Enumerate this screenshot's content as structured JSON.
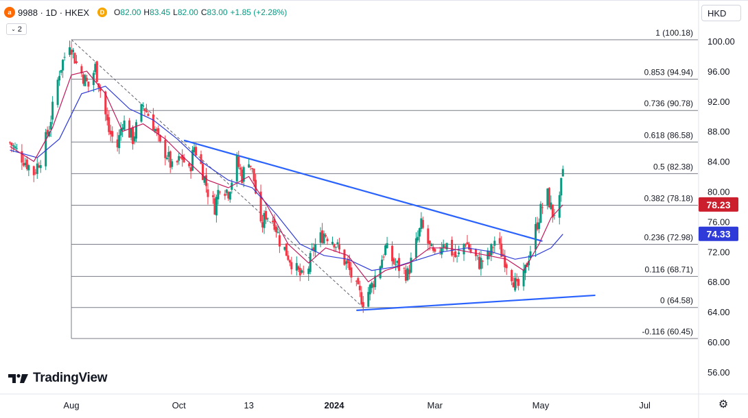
{
  "header": {
    "symbol_badge": "a",
    "title": "9988 · 1D · HKEX",
    "d_badge": "D",
    "ohlc": [
      {
        "k": "O",
        "v": "82.00"
      },
      {
        "k": "H",
        "v": "83.45"
      },
      {
        "k": "L",
        "v": "82.00"
      },
      {
        "k": "C",
        "v": "83.00"
      },
      {
        "k": "",
        "v": "+1.85 (+2.28%)"
      }
    ],
    "indicator_count": "2",
    "currency": "HKD"
  },
  "logo": {
    "text": "TradingView"
  },
  "colors": {
    "up": "#089981",
    "down": "#f23645",
    "ma_fast": "#c2185b",
    "ma_slow": "#2e3bd8",
    "trendline": "#2962ff",
    "fib": "#787b86",
    "label_red": "#cc1f2e",
    "label_blue": "#2e3bd8"
  },
  "chart_data": {
    "type": "candlestick",
    "price_scale": {
      "ticks": [
        56,
        60,
        64,
        68,
        72,
        76,
        80,
        84,
        88,
        92,
        96,
        100
      ],
      "range": [
        52,
        104
      ]
    },
    "price_labels": [
      {
        "value": 78.23,
        "text": "78.23",
        "color": "#cc1f2e"
      },
      {
        "value": 74.33,
        "text": "74.33",
        "color": "#2e3bd8"
      }
    ],
    "time_labels": [
      {
        "text": "Aug",
        "date": "2023-08-01",
        "bold": false
      },
      {
        "text": "Oct",
        "date": "2023-10-03",
        "bold": false
      },
      {
        "text": "13",
        "date": "2023-11-13",
        "bold": false
      },
      {
        "text": "2024",
        "date": "2024-01-02",
        "bold": true
      },
      {
        "text": "Mar",
        "date": "2024-03-01",
        "bold": false
      },
      {
        "text": "May",
        "date": "2024-05-02",
        "bold": false
      },
      {
        "text": "Jul",
        "date": "2024-07-02",
        "bold": false
      }
    ],
    "fib_levels": [
      {
        "ratio": "1",
        "value": 100.18
      },
      {
        "ratio": "0.853",
        "value": 94.94
      },
      {
        "ratio": "0.736",
        "value": 90.78
      },
      {
        "ratio": "0.618",
        "value": 86.58
      },
      {
        "ratio": "0.5",
        "value": 82.38
      },
      {
        "ratio": "0.382",
        "value": 78.18
      },
      {
        "ratio": "0.236",
        "value": 72.98
      },
      {
        "ratio": "0.116",
        "value": 68.71
      },
      {
        "ratio": "0",
        "value": 64.58
      },
      {
        "ratio": "-0.116",
        "value": 60.45
      }
    ],
    "trendlines": [
      {
        "name": "descending resistance",
        "from": {
          "date": "2023-10-06",
          "price": 86.8
        },
        "to": {
          "date": "2024-05-03",
          "price": 73.4
        }
      },
      {
        "name": "ascending support",
        "from": {
          "date": "2024-01-15",
          "price": 64.2
        },
        "to": {
          "date": "2024-06-03",
          "price": 66.2
        }
      },
      {
        "name": "fib anchor",
        "from": {
          "date": "2023-08-01",
          "price": 100.18
        },
        "to": {
          "date": "2024-01-19",
          "price": 64.58
        },
        "dashed": true
      }
    ],
    "close_path": [
      {
        "date": "2023-06-26",
        "close": 86.5
      },
      {
        "date": "2023-07-05",
        "close": 84.0
      },
      {
        "date": "2023-07-10",
        "close": 82.5
      },
      {
        "date": "2023-07-14",
        "close": 84.5
      },
      {
        "date": "2023-07-19",
        "close": 88.5
      },
      {
        "date": "2023-07-21",
        "close": 91.0
      },
      {
        "date": "2023-07-25",
        "close": 96.0
      },
      {
        "date": "2023-07-31",
        "close": 100.0
      },
      {
        "date": "2023-08-04",
        "close": 97.0
      },
      {
        "date": "2023-08-11",
        "close": 94.0
      },
      {
        "date": "2023-08-15",
        "close": 96.5
      },
      {
        "date": "2023-08-18",
        "close": 93.5
      },
      {
        "date": "2023-08-23",
        "close": 88.0
      },
      {
        "date": "2023-08-28",
        "close": 86.0
      },
      {
        "date": "2023-08-31",
        "close": 89.5
      },
      {
        "date": "2023-09-06",
        "close": 87.0
      },
      {
        "date": "2023-09-12",
        "close": 91.5
      },
      {
        "date": "2023-09-18",
        "close": 89.0
      },
      {
        "date": "2023-09-22",
        "close": 86.0
      },
      {
        "date": "2023-09-26",
        "close": 85.0
      },
      {
        "date": "2023-09-29",
        "close": 83.0
      },
      {
        "date": "2023-10-05",
        "close": 84.5
      },
      {
        "date": "2023-10-09",
        "close": 82.5
      },
      {
        "date": "2023-10-12",
        "close": 86.0
      },
      {
        "date": "2023-10-16",
        "close": 83.5
      },
      {
        "date": "2023-10-20",
        "close": 80.0
      },
      {
        "date": "2023-10-24",
        "close": 78.0
      },
      {
        "date": "2023-10-27",
        "close": 81.0
      },
      {
        "date": "2023-11-01",
        "close": 80.0
      },
      {
        "date": "2023-11-06",
        "close": 84.0
      },
      {
        "date": "2023-11-09",
        "close": 82.0
      },
      {
        "date": "2023-11-13",
        "close": 84.5
      },
      {
        "date": "2023-11-16",
        "close": 81.5
      },
      {
        "date": "2023-11-20",
        "close": 75.0
      },
      {
        "date": "2023-11-23",
        "close": 77.0
      },
      {
        "date": "2023-11-28",
        "close": 76.0
      },
      {
        "date": "2023-12-01",
        "close": 73.5
      },
      {
        "date": "2023-12-06",
        "close": 71.5
      },
      {
        "date": "2023-12-11",
        "close": 69.5
      },
      {
        "date": "2023-12-14",
        "close": 68.5
      },
      {
        "date": "2023-12-18",
        "close": 70.0
      },
      {
        "date": "2023-12-21",
        "close": 72.5
      },
      {
        "date": "2023-12-27",
        "close": 74.5
      },
      {
        "date": "2024-01-02",
        "close": 73.5
      },
      {
        "date": "2024-01-05",
        "close": 72.0
      },
      {
        "date": "2024-01-10",
        "close": 70.0
      },
      {
        "date": "2024-01-15",
        "close": 67.0
      },
      {
        "date": "2024-01-19",
        "close": 65.5
      },
      {
        "date": "2024-01-24",
        "close": 67.5
      },
      {
        "date": "2024-01-29",
        "close": 70.5
      },
      {
        "date": "2024-02-01",
        "close": 72.5
      },
      {
        "date": "2024-02-06",
        "close": 70.5
      },
      {
        "date": "2024-02-14",
        "close": 69.0
      },
      {
        "date": "2024-02-19",
        "close": 73.0
      },
      {
        "date": "2024-02-22",
        "close": 75.5
      },
      {
        "date": "2024-02-27",
        "close": 72.5
      },
      {
        "date": "2024-03-01",
        "close": 71.0
      },
      {
        "date": "2024-03-06",
        "close": 73.5
      },
      {
        "date": "2024-03-11",
        "close": 72.0
      },
      {
        "date": "2024-03-14",
        "close": 71.0
      },
      {
        "date": "2024-03-19",
        "close": 73.5
      },
      {
        "date": "2024-03-22",
        "close": 72.0
      },
      {
        "date": "2024-03-27",
        "close": 70.5
      },
      {
        "date": "2024-04-02",
        "close": 71.5
      },
      {
        "date": "2024-04-05",
        "close": 73.5
      },
      {
        "date": "2024-04-10",
        "close": 71.5
      },
      {
        "date": "2024-04-15",
        "close": 69.0
      },
      {
        "date": "2024-04-18",
        "close": 67.0
      },
      {
        "date": "2024-04-22",
        "close": 68.5
      },
      {
        "date": "2024-04-25",
        "close": 71.5
      },
      {
        "date": "2024-04-29",
        "close": 75.0
      },
      {
        "date": "2024-05-02",
        "close": 77.5
      },
      {
        "date": "2024-05-06",
        "close": 79.5
      },
      {
        "date": "2024-05-09",
        "close": 77.0
      },
      {
        "date": "2024-05-13",
        "close": 78.5
      },
      {
        "date": "2024-05-15",
        "close": 83.0
      }
    ],
    "ma_fast_path": [
      {
        "date": "2023-06-26",
        "value": 86.0
      },
      {
        "date": "2023-07-10",
        "value": 84.0
      },
      {
        "date": "2023-07-21",
        "value": 88.5
      },
      {
        "date": "2023-08-01",
        "value": 95.5
      },
      {
        "date": "2023-08-10",
        "value": 96.0
      },
      {
        "date": "2023-08-21",
        "value": 93.0
      },
      {
        "date": "2023-08-31",
        "value": 88.0
      },
      {
        "date": "2023-09-12",
        "value": 89.0
      },
      {
        "date": "2023-09-25",
        "value": 87.0
      },
      {
        "date": "2023-10-06",
        "value": 84.5
      },
      {
        "date": "2023-10-20",
        "value": 81.5
      },
      {
        "date": "2023-11-01",
        "value": 80.5
      },
      {
        "date": "2023-11-13",
        "value": 82.0
      },
      {
        "date": "2023-11-24",
        "value": 78.0
      },
      {
        "date": "2023-12-06",
        "value": 73.0
      },
      {
        "date": "2023-12-18",
        "value": 70.5
      },
      {
        "date": "2023-12-28",
        "value": 72.5
      },
      {
        "date": "2024-01-10",
        "value": 71.5
      },
      {
        "date": "2024-01-22",
        "value": 68.0
      },
      {
        "date": "2024-02-01",
        "value": 69.5
      },
      {
        "date": "2024-02-15",
        "value": 70.5
      },
      {
        "date": "2024-02-27",
        "value": 72.5
      },
      {
        "date": "2024-03-08",
        "value": 72.5
      },
      {
        "date": "2024-03-20",
        "value": 72.0
      },
      {
        "date": "2024-04-01",
        "value": 71.5
      },
      {
        "date": "2024-04-12",
        "value": 71.0
      },
      {
        "date": "2024-04-22",
        "value": 69.5
      },
      {
        "date": "2024-05-01",
        "value": 73.0
      },
      {
        "date": "2024-05-08",
        "value": 76.5
      },
      {
        "date": "2024-05-15",
        "value": 78.23
      }
    ],
    "ma_slow_path": [
      {
        "date": "2023-06-26",
        "value": 85.5
      },
      {
        "date": "2023-07-12",
        "value": 84.5
      },
      {
        "date": "2023-07-25",
        "value": 87.0
      },
      {
        "date": "2023-08-07",
        "value": 93.0
      },
      {
        "date": "2023-08-21",
        "value": 94.0
      },
      {
        "date": "2023-09-04",
        "value": 91.0
      },
      {
        "date": "2023-09-18",
        "value": 89.5
      },
      {
        "date": "2023-10-02",
        "value": 87.0
      },
      {
        "date": "2023-10-16",
        "value": 84.0
      },
      {
        "date": "2023-11-01",
        "value": 81.5
      },
      {
        "date": "2023-11-15",
        "value": 80.5
      },
      {
        "date": "2023-11-29",
        "value": 77.0
      },
      {
        "date": "2023-12-13",
        "value": 73.0
      },
      {
        "date": "2023-12-27",
        "value": 71.5
      },
      {
        "date": "2024-01-10",
        "value": 71.0
      },
      {
        "date": "2024-01-24",
        "value": 69.5
      },
      {
        "date": "2024-02-07",
        "value": 70.0
      },
      {
        "date": "2024-02-21",
        "value": 71.0
      },
      {
        "date": "2024-03-06",
        "value": 72.0
      },
      {
        "date": "2024-03-20",
        "value": 72.5
      },
      {
        "date": "2024-04-03",
        "value": 72.0
      },
      {
        "date": "2024-04-17",
        "value": 71.0
      },
      {
        "date": "2024-04-29",
        "value": 71.5
      },
      {
        "date": "2024-05-08",
        "value": 72.5
      },
      {
        "date": "2024-05-15",
        "value": 74.33
      }
    ]
  }
}
